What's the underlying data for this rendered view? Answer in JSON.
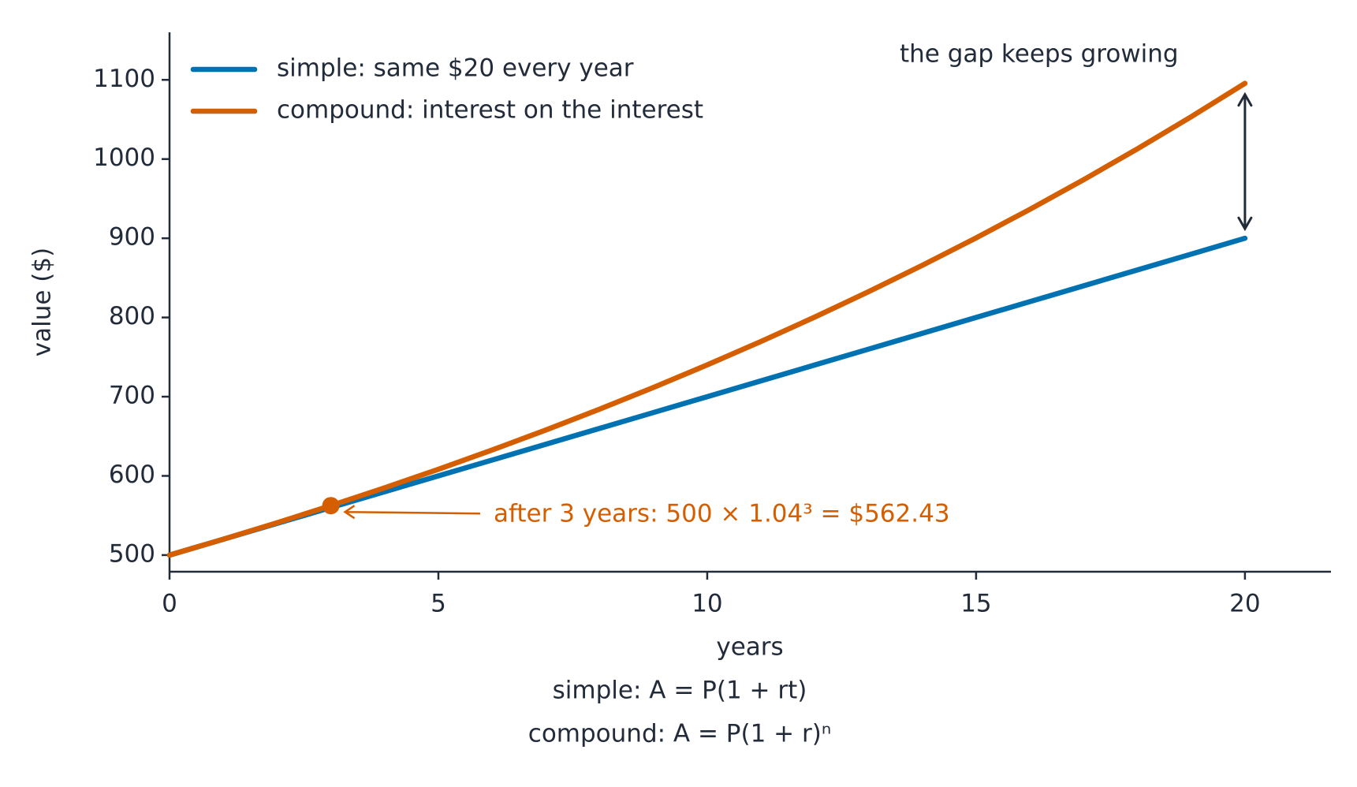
{
  "chart_data": {
    "type": "line",
    "x": [
      0,
      1,
      2,
      3,
      4,
      5,
      6,
      7,
      8,
      9,
      10,
      11,
      12,
      13,
      14,
      15,
      16,
      17,
      18,
      19,
      20
    ],
    "series": [
      {
        "name": "simple: same $20 every year",
        "color": "#0072b2",
        "values": [
          500,
          520,
          540,
          560,
          580,
          600,
          620,
          640,
          660,
          680,
          700,
          720,
          740,
          760,
          780,
          800,
          820,
          840,
          860,
          880,
          900
        ]
      },
      {
        "name": "compound: interest on the interest",
        "color": "#d55e00",
        "values": [
          500,
          520,
          540.8,
          562.43,
          584.93,
          608.33,
          632.66,
          657.97,
          684.28,
          711.66,
          740.12,
          769.73,
          800.52,
          832.54,
          865.84,
          900.47,
          936.49,
          973.95,
          1012.91,
          1053.42,
          1095.56
        ]
      }
    ],
    "xlabel": "years",
    "ylabel": "value ($)",
    "xlim": [
      0,
      21.6
    ],
    "ylim": [
      479,
      1160
    ],
    "xticks": [
      0,
      5,
      10,
      15,
      20
    ],
    "yticks": [
      500,
      600,
      700,
      800,
      900,
      1000,
      1100
    ],
    "grid": false,
    "legend": "upper left",
    "annotations": [
      "after 3 years: 500 × 1.04³ = $562.43",
      "the gap keeps growing"
    ],
    "formulas": [
      "simple:  A = P(1 + rt)",
      "compound:  A = P(1 + r)ⁿ"
    ]
  }
}
